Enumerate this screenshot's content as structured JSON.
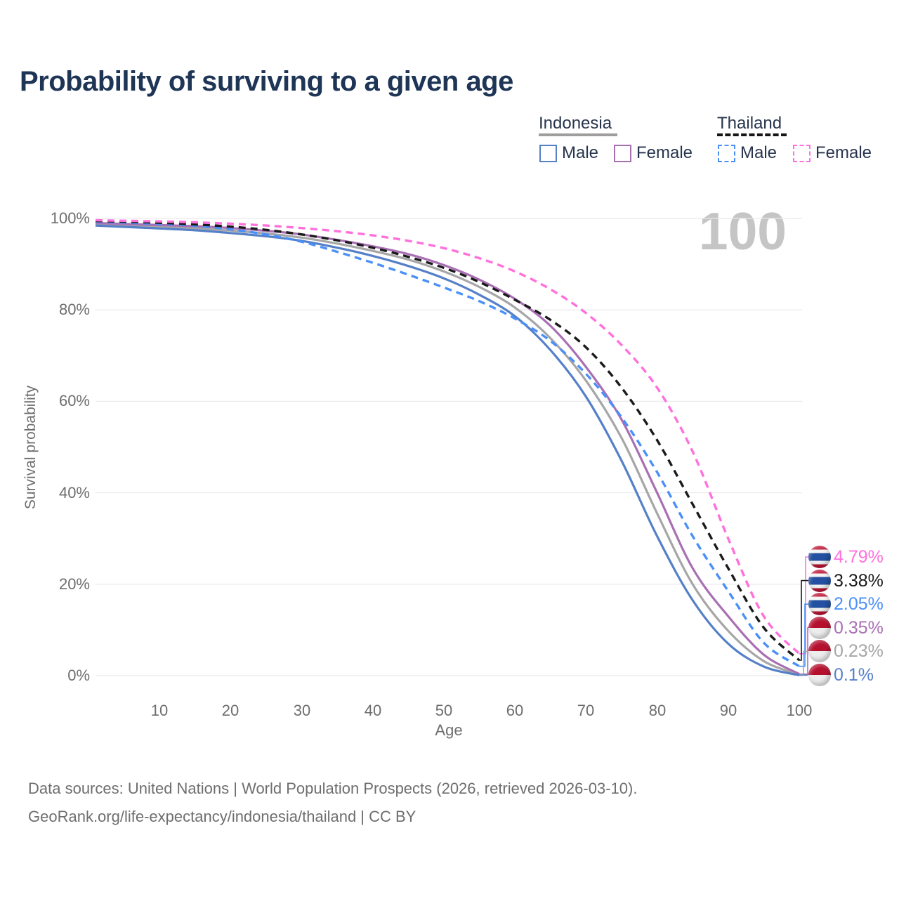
{
  "title": "Probability of surviving to a given age",
  "watermark": "100",
  "legend": {
    "groups": [
      {
        "country": "Indonesia",
        "line_style": "solid",
        "underline_color": "#9e9e9e",
        "items": [
          {
            "label": "Male",
            "color": "#5580c8",
            "dashed": false
          },
          {
            "label": "Female",
            "color": "#a96fb3",
            "dashed": false
          }
        ]
      },
      {
        "country": "Thailand",
        "line_style": "dashed",
        "underline_color": "#161616",
        "items": [
          {
            "label": "Male",
            "color": "#4a90f8",
            "dashed": true
          },
          {
            "label": "Female",
            "color": "#ff70dd",
            "dashed": true
          }
        ]
      }
    ]
  },
  "chart_data": {
    "type": "line",
    "title": "Probability of surviving to a given age",
    "xlabel": "Age",
    "ylabel": "Survival probability",
    "xlim": [
      1,
      100
    ],
    "ylim": [
      0,
      100
    ],
    "grid": "horizontal",
    "x_ticks": [
      10,
      20,
      30,
      40,
      50,
      60,
      70,
      80,
      90,
      100
    ],
    "y_ticks": [
      {
        "value": 100,
        "label": "100%"
      },
      {
        "value": 80,
        "label": "80%"
      },
      {
        "value": 60,
        "label": "60%"
      },
      {
        "value": 40,
        "label": "40%"
      },
      {
        "value": 20,
        "label": "20%"
      },
      {
        "value": 0,
        "label": "0%"
      }
    ],
    "x": [
      1,
      5,
      10,
      15,
      20,
      25,
      30,
      35,
      40,
      45,
      50,
      55,
      60,
      65,
      70,
      75,
      80,
      85,
      90,
      95,
      100
    ],
    "series": [
      {
        "id": "indonesia_both",
        "country": "Indonesia",
        "sex": "Both sexes",
        "flag": "indonesia",
        "color": "#a6a6a6",
        "dashed": false,
        "end_label": "0.23%",
        "values": [
          98.75,
          98.45,
          98.2,
          97.85,
          97.35,
          96.7,
          95.8,
          94.5,
          92.9,
          91.0,
          88.4,
          85.0,
          80.5,
          73.8,
          64.5,
          52.0,
          35.5,
          20.0,
          9.8,
          3.2,
          0.23
        ]
      },
      {
        "id": "indonesia_female",
        "country": "Indonesia",
        "sex": "Female",
        "flag": "indonesia",
        "color": "#a96fb3",
        "dashed": false,
        "end_label": "0.35%",
        "values": [
          99.0,
          98.8,
          98.55,
          98.3,
          97.9,
          97.3,
          96.5,
          95.3,
          93.9,
          92.2,
          89.8,
          86.6,
          82.4,
          76.5,
          67.5,
          56.0,
          40.0,
          23.5,
          13.0,
          4.6,
          0.35
        ]
      },
      {
        "id": "indonesia_male",
        "country": "Indonesia",
        "sex": "Male",
        "flag": "indonesia",
        "color": "#5580c8",
        "dashed": false,
        "end_label": "0.1%",
        "values": [
          98.45,
          98.15,
          97.8,
          97.4,
          96.8,
          96.1,
          95.1,
          93.6,
          91.8,
          89.6,
          86.9,
          83.3,
          78.6,
          71.2,
          61.0,
          47.0,
          30.5,
          16.5,
          7.0,
          2.0,
          0.1
        ]
      },
      {
        "id": "thailand_male",
        "country": "Thailand",
        "sex": "Male",
        "flag": "thailand",
        "color": "#4a90f8",
        "dashed": true,
        "end_label": "2.05%",
        "values": [
          99.3,
          99.1,
          98.8,
          98.4,
          97.6,
          96.5,
          94.9,
          92.7,
          90.3,
          87.7,
          84.9,
          81.9,
          78.1,
          73.2,
          66.0,
          56.5,
          44.5,
          30.5,
          18.5,
          7.2,
          2.05
        ]
      },
      {
        "id": "thailand_both",
        "country": "Thailand",
        "sex": "Both sexes",
        "flag": "thailand",
        "color": "#1a1a1a",
        "dashed": true,
        "end_label": "3.38%",
        "values": [
          99.45,
          99.3,
          99.05,
          98.7,
          98.2,
          97.5,
          96.5,
          95.2,
          93.6,
          91.6,
          89.2,
          86.1,
          82.2,
          77.8,
          71.8,
          63.0,
          51.5,
          37.5,
          23.5,
          10.5,
          3.38
        ]
      },
      {
        "id": "thailand_female",
        "country": "Thailand",
        "sex": "Female",
        "flag": "thailand",
        "color": "#ff70dd",
        "dashed": true,
        "end_label": "4.79%",
        "values": [
          99.6,
          99.5,
          99.35,
          99.15,
          98.85,
          98.45,
          97.9,
          97.2,
          96.3,
          95.1,
          93.5,
          91.3,
          88.4,
          84.5,
          79.3,
          72.3,
          63.0,
          49.0,
          30.0,
          13.0,
          4.79
        ]
      }
    ]
  },
  "axes": {
    "x": {
      "label": "Age"
    },
    "y": {
      "label": "Survival probability"
    }
  },
  "footer": {
    "line1": "Data sources: United Nations | World Population Prospects (2026, retrieved 2026-03-10).",
    "line2": "GeoRank.org/life-expectancy/indonesia/thailand | CC BY"
  },
  "colors": {
    "title": "#1e3556",
    "axis_text": "#6e6e6e",
    "grid": "#ebebeb",
    "watermark": "#c5c5c5"
  }
}
